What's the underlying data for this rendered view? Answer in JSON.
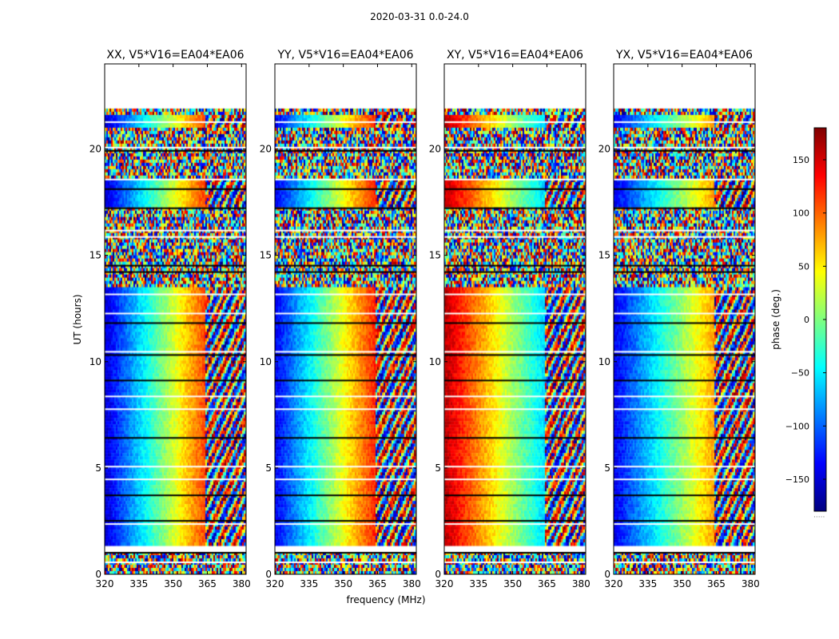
{
  "figure": {
    "suptitle": "2020-03-31 0.0-24.0"
  },
  "chart_data": {
    "type": "heatmap",
    "title": "2020-03-31 0.0-24.0",
    "xlabel": "frequency (MHz)",
    "ylabel": "UT (hours)",
    "xlim": [
      320,
      382
    ],
    "ylim": [
      0,
      24
    ],
    "x_ticks": [
      320,
      335,
      350,
      365,
      380
    ],
    "y_ticks": [
      0,
      5,
      10,
      15,
      20
    ],
    "panels": [
      {
        "title": "XX, V5*V16=EA04*EA06",
        "pol": "XX",
        "phase_ramp_center_mhz": 345,
        "phase_ramp_deg": 360
      },
      {
        "title": "YY, V5*V16=EA04*EA06",
        "pol": "YY",
        "phase_ramp_center_mhz": 343,
        "phase_ramp_deg": 360
      },
      {
        "title": "XY, V5*V16=EA04*EA06",
        "pol": "XY",
        "phase_ramp_center_mhz": 352,
        "phase_ramp_deg": -300
      },
      {
        "title": "YX, V5*V16=EA04*EA06",
        "pol": "YX",
        "phase_ramp_center_mhz": 348,
        "phase_ramp_deg": 300
      }
    ],
    "empty_time_ranges_hours": [
      [
        21.9,
        24.0
      ],
      [
        1.0,
        1.3
      ]
    ],
    "coherent_time_ranges_hours": [
      [
        1.3,
        13.5
      ],
      [
        17.3,
        18.6
      ],
      [
        21.0,
        21.6
      ]
    ],
    "colorbar": {
      "label": "phase (deg.)",
      "range": [
        -180,
        180
      ],
      "ticks": [
        -150,
        -100,
        -50,
        0,
        50,
        100,
        150
      ],
      "tick_labels": [
        "−150",
        "−100",
        "−50",
        "0",
        "50",
        "100",
        "150"
      ],
      "colormap": "jet"
    }
  }
}
